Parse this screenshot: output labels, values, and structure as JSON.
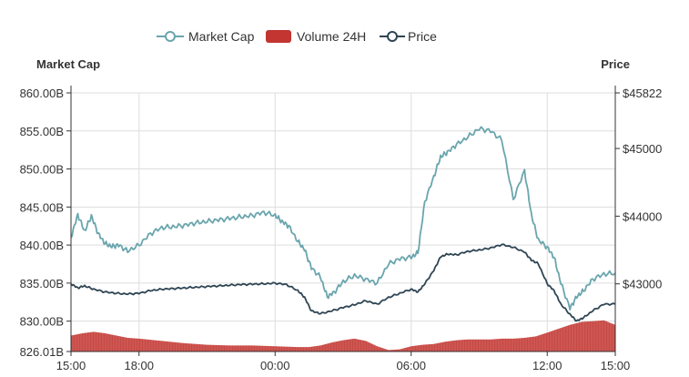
{
  "chart_data": {
    "type": "line",
    "title": "",
    "legend": {
      "placement": "top-center",
      "items": [
        {
          "name": "Market Cap",
          "marker": "line-circle",
          "color": "#6aa5ad"
        },
        {
          "name": "Volume 24H",
          "marker": "rounded-rect",
          "color": "#c23531"
        },
        {
          "name": "Price",
          "marker": "line-circle",
          "color": "#2f4554"
        }
      ]
    },
    "left_axis": {
      "name": "Market Cap",
      "min": 826.01,
      "max": 860.0,
      "tick_labels": [
        "860.00B",
        "855.00B",
        "850.00B",
        "845.00B",
        "840.00B",
        "835.00B",
        "830.00B",
        "826.01B"
      ],
      "tick_values": [
        860,
        855,
        850,
        845,
        840,
        835,
        830,
        826.01
      ]
    },
    "right_axis": {
      "name": "Price",
      "min": 42000,
      "max": 45822,
      "tick_labels": [
        "$45822",
        "$45000",
        "$44000",
        "$43000"
      ],
      "tick_values": [
        45822,
        45000,
        44000,
        43000
      ]
    },
    "x_axis": {
      "start": "15:00",
      "end": "15:00 (+1d)",
      "tick_labels": [
        "15:00",
        "18:00",
        "00:00",
        "06:00",
        "12:00",
        "15:00"
      ],
      "tick_hours": [
        0,
        3,
        9,
        15,
        21,
        24
      ],
      "grid_hours": [
        3,
        9,
        15,
        21
      ]
    },
    "grid": true,
    "colors": {
      "market_cap": "#6aa5ad",
      "volume": "#c23531",
      "price": "#2f4554",
      "axis": "#333333",
      "grid": "#dddddd"
    },
    "series": [
      {
        "name": "Market Cap",
        "axis": "left",
        "hours": [
          0,
          0.3,
          0.6,
          0.9,
          1.2,
          1.5,
          1.8,
          2.1,
          2.5,
          3,
          3.5,
          4,
          4.5,
          5,
          5.5,
          6,
          6.5,
          7,
          7.5,
          8,
          8.5,
          9,
          9.3,
          9.6,
          10,
          10.3,
          10.6,
          11,
          11.3,
          11.6,
          12,
          12.5,
          13,
          13.5,
          14,
          14.5,
          15,
          15.3,
          15.6,
          16,
          16.3,
          16.6,
          17,
          17.5,
          18,
          18.5,
          19,
          19.5,
          20,
          20.3,
          20.6,
          21,
          21.3,
          21.6,
          22,
          22.3,
          22.6,
          23,
          23.5,
          24
        ],
        "values": [
          841,
          844,
          841.8,
          843.8,
          841.5,
          840.2,
          839.8,
          840,
          839.2,
          840,
          841.5,
          842.3,
          842.4,
          842.6,
          842.9,
          843.1,
          843.3,
          843.5,
          843.7,
          843.9,
          844.3,
          843.9,
          843.1,
          842.5,
          840.5,
          839.4,
          837,
          835.8,
          833.2,
          833.8,
          835.2,
          836,
          835.5,
          835,
          837.5,
          838.2,
          838.4,
          839,
          845.7,
          849,
          851.6,
          852.2,
          853.2,
          854.2,
          855.3,
          855,
          853.8,
          846,
          849.8,
          844,
          840.7,
          839.7,
          838.4,
          835,
          831.7,
          833.2,
          834,
          835.5,
          836.2,
          836.3
        ]
      },
      {
        "name": "Price",
        "axis": "right",
        "hours": [
          0,
          0.3,
          0.6,
          1,
          1.5,
          2,
          2.5,
          3,
          3.5,
          4,
          4.5,
          5,
          5.5,
          6,
          6.5,
          7,
          7.5,
          8,
          8.5,
          9,
          9.5,
          10,
          10.3,
          10.6,
          11,
          11.5,
          12,
          12.5,
          13,
          13.5,
          14,
          14.5,
          15,
          15.3,
          15.6,
          16,
          16.3,
          16.6,
          17,
          17.5,
          18,
          18.5,
          19,
          19.5,
          20,
          20.3,
          20.6,
          21,
          21.3,
          21.6,
          22,
          22.3,
          22.6,
          23,
          23.5,
          24
        ],
        "values": [
          43000,
          42940,
          42970,
          42920,
          42880,
          42860,
          42850,
          42860,
          42900,
          42920,
          42930,
          42940,
          42950,
          42960,
          42970,
          42980,
          42990,
          42995,
          43000,
          43010,
          42990,
          42900,
          42800,
          42600,
          42560,
          42600,
          42650,
          42690,
          42750,
          42700,
          42800,
          42860,
          42920,
          42880,
          43000,
          43200,
          43400,
          43440,
          43430,
          43480,
          43500,
          43530,
          43580,
          43540,
          43470,
          43350,
          43300,
          43000,
          42900,
          42700,
          42550,
          42450,
          42500,
          42600,
          42700,
          42700
        ]
      },
      {
        "name": "Volume 24H",
        "axis": "left",
        "style": "area",
        "hours": [
          0,
          0.5,
          1,
          1.5,
          2,
          2.5,
          3,
          4,
          5,
          6,
          7,
          8,
          9,
          10,
          10.5,
          11,
          11.5,
          12,
          12.5,
          13,
          13.5,
          14,
          14.5,
          15,
          15.5,
          16,
          16.5,
          17,
          17.5,
          18,
          18.5,
          19,
          19.5,
          20,
          20.5,
          21,
          21.5,
          22,
          22.5,
          23,
          23.5,
          24
        ],
        "values": [
          828.1,
          828.4,
          828.6,
          828.4,
          828.1,
          827.8,
          827.7,
          827.4,
          827.1,
          826.9,
          826.8,
          826.8,
          826.7,
          826.6,
          826.6,
          826.8,
          827.2,
          827.5,
          827.7,
          827.4,
          826.7,
          826.2,
          826.3,
          826.7,
          826.9,
          827,
          827.3,
          827.5,
          827.6,
          827.6,
          827.6,
          827.7,
          827.7,
          827.8,
          828,
          828.5,
          829,
          829.5,
          829.9,
          830,
          830.1,
          829.5
        ]
      }
    ]
  }
}
